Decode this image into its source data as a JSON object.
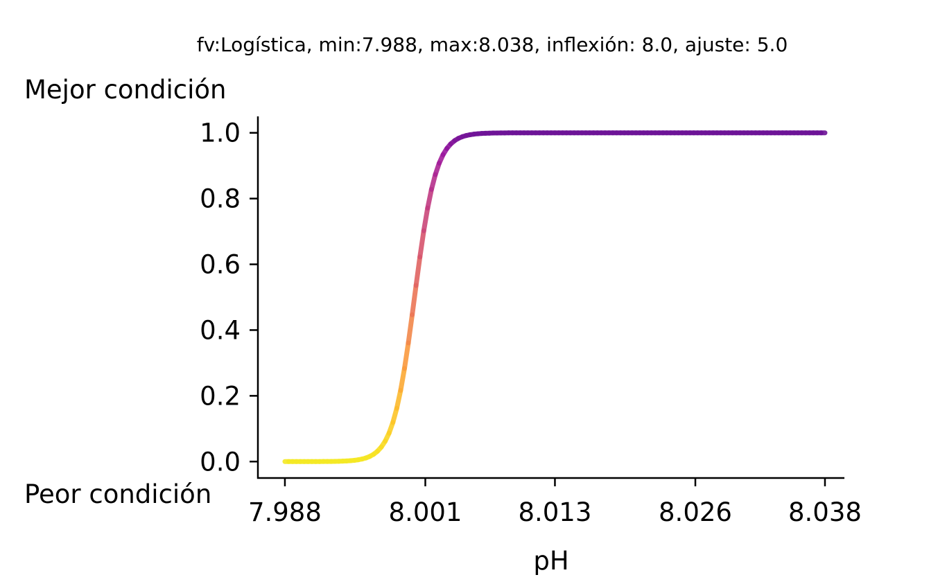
{
  "chart_data": {
    "type": "line",
    "title": "fv:Logística, min:7.988, max:8.038, inflexión: 8.0, ajuste: 5.0",
    "xlabel": "pH",
    "ylabel_top": "Mejor condición",
    "ylabel_bottom": "Peor condición",
    "xlim": [
      7.9855,
      8.0398
    ],
    "ylim": [
      -0.05,
      1.05
    ],
    "xticks": [
      7.988,
      8.001,
      8.013,
      8.026,
      8.038
    ],
    "xtick_labels": [
      "7.988",
      "8.001",
      "8.013",
      "8.026",
      "8.038"
    ],
    "yticks": [
      0.0,
      0.2,
      0.4,
      0.6,
      0.8,
      1.0
    ],
    "ytick_labels": [
      "0.0",
      "0.2",
      "0.4",
      "0.6",
      "0.8",
      "1.0"
    ],
    "series": [
      {
        "function": "logistic",
        "min": 7.988,
        "max": 8.038,
        "inflection": 8.0,
        "steepness": 5.0,
        "colormap": "plasma_r",
        "x": [
          7.988,
          7.991,
          7.994,
          7.996,
          7.998,
          8.0,
          8.002,
          8.004,
          8.006,
          8.009,
          8.013,
          8.02,
          8.038
        ],
        "values": [
          0.0,
          0.02,
          0.06,
          0.15,
          0.3,
          0.5,
          0.67,
          0.83,
          0.92,
          0.97,
          0.995,
          1.0,
          1.0
        ]
      }
    ],
    "grid": false,
    "legend": "none"
  }
}
